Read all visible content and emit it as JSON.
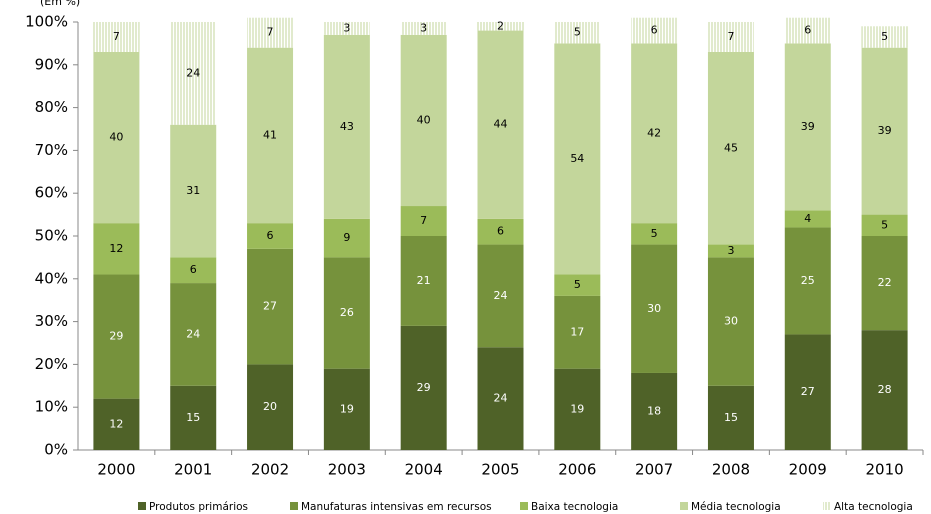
{
  "chart_data": {
    "type": "stacked_bar",
    "y_label": "(Em %)",
    "categories": [
      "2000",
      "2001",
      "2002",
      "2003",
      "2004",
      "2005",
      "2006",
      "2007",
      "2008",
      "2009",
      "2010"
    ],
    "series": [
      {
        "name": "Produtos primários",
        "color": "#4f6228",
        "values": [
          12,
          15,
          20,
          19,
          29,
          24,
          19,
          18,
          15,
          27,
          28
        ]
      },
      {
        "name": "Manufaturas intensivas em recursos",
        "color": "#76923c",
        "values": [
          29,
          24,
          27,
          26,
          21,
          24,
          17,
          30,
          30,
          25,
          22
        ]
      },
      {
        "name": "Baixa tecnologia",
        "color": "#9bbb59",
        "values": [
          12,
          6,
          6,
          9,
          7,
          6,
          5,
          5,
          3,
          4,
          5
        ]
      },
      {
        "name": "Média tecnologia",
        "color": "#c3d69b",
        "values": [
          40,
          31,
          41,
          43,
          40,
          44,
          54,
          42,
          45,
          39,
          39
        ]
      },
      {
        "name": "Alta tecnologia",
        "color": "#c3d69b",
        "pattern": "vertical-hatch",
        "values": [
          7,
          24,
          7,
          3,
          3,
          2,
          5,
          6,
          7,
          6,
          5
        ]
      }
    ],
    "ylim": [
      0,
      100
    ],
    "yticks": [
      {
        "value": 0,
        "label": "0%"
      },
      {
        "value": 10,
        "label": "10%"
      },
      {
        "value": 20,
        "label": "20%"
      },
      {
        "value": 30,
        "label": "30%"
      },
      {
        "value": 40,
        "label": "40%"
      },
      {
        "value": 50,
        "label": "50%"
      },
      {
        "value": 60,
        "label": "60%"
      },
      {
        "value": 70,
        "label": "70%"
      },
      {
        "value": 80,
        "label": "80%"
      },
      {
        "value": 90,
        "label": "90%"
      },
      {
        "value": 100,
        "label": "100%"
      }
    ],
    "legend_position": "bottom"
  }
}
